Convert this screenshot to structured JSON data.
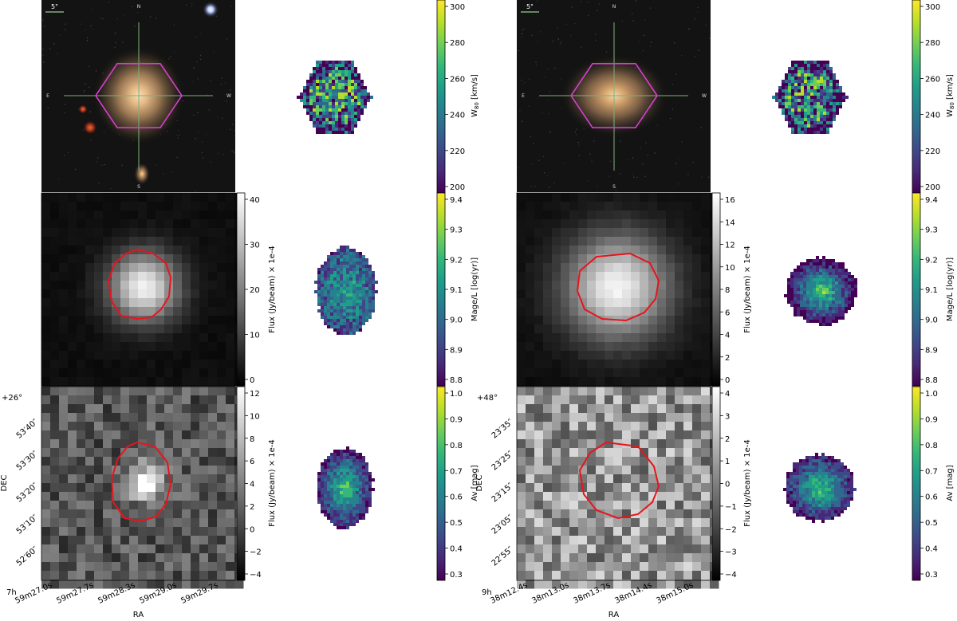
{
  "panels": [
    {
      "id": "left",
      "scale_bar_label": "5\"",
      "compass": {
        "n": "N",
        "s": "S",
        "e": "E",
        "w": "W"
      },
      "w80_colorbar": {
        "label": "W80 [km/s]",
        "label_main": "W",
        "label_sub": "80",
        "label_unit": " [km/s]",
        "ticks": [
          "300",
          "280",
          "260",
          "240",
          "220",
          "200"
        ]
      },
      "flux1_colorbar": {
        "label": "Flux (Jy/beam) × 1e-4",
        "ticks": [
          "40",
          "30",
          "20",
          "10",
          "0"
        ]
      },
      "age_colorbar": {
        "label": "Mage/L [log(yr)]",
        "ticks": [
          "9.4",
          "9.3",
          "9.2",
          "9.1",
          "9.0",
          "8.9",
          "8.8"
        ]
      },
      "flux2_colorbar": {
        "label": "Flux (Jy/beam) × 1e-4",
        "ticks": [
          "12",
          "10",
          "8",
          "6",
          "4",
          "2",
          "0",
          "−2",
          "−4"
        ]
      },
      "av_colorbar": {
        "label": "Av [mag]",
        "ticks": [
          "1.0",
          "0.9",
          "0.8",
          "0.7",
          "0.6",
          "0.5",
          "0.4",
          "0.3"
        ]
      },
      "dec_offset": "+26°",
      "dec_ticks": [
        "53′40″",
        "53′30″",
        "53′20″",
        "53′10″",
        "52′60″"
      ],
      "ra_offset": "7h",
      "ra_ticks": [
        "59m27.0s",
        "59m27.7s",
        "59m28.3s",
        "59m29.0s",
        "59m29.7s"
      ],
      "dec_label": "DEC",
      "ra_label": "RA"
    },
    {
      "id": "right",
      "scale_bar_label": "5\"",
      "compass": {
        "n": "N",
        "s": "S",
        "e": "E",
        "w": "W"
      },
      "w80_colorbar": {
        "label": "W80 [km/s]",
        "label_main": "W",
        "label_sub": "80",
        "label_unit": " [km/s]",
        "ticks": [
          "300",
          "280",
          "260",
          "240",
          "220",
          "200"
        ]
      },
      "flux1_colorbar": {
        "label": "Flux (Jy/beam) × 1e-4",
        "ticks": [
          "16",
          "14",
          "12",
          "10",
          "8",
          "6",
          "4",
          "2",
          "0"
        ]
      },
      "age_colorbar": {
        "label": "Mage/L [log(yr)]",
        "ticks": [
          "9.4",
          "9.3",
          "9.2",
          "9.1",
          "9.0",
          "8.9",
          "8.8"
        ]
      },
      "flux2_colorbar": {
        "label": "Flux (Jy/beam) × 1e-4",
        "ticks": [
          "4",
          "3",
          "2",
          "1",
          "0",
          "−1",
          "−2",
          "−3",
          "−4"
        ]
      },
      "av_colorbar": {
        "label": "Av [mag]",
        "ticks": [
          "1.0",
          "0.9",
          "0.8",
          "0.7",
          "0.6",
          "0.5",
          "0.4",
          "0.3"
        ]
      },
      "dec_offset": "+48°",
      "dec_ticks": [
        "23′35″",
        "23′25″",
        "23′15″",
        "23′05″",
        "22′55″"
      ],
      "ra_offset": "9h",
      "ra_ticks": [
        "38m12.4s",
        "38m13.0s",
        "38m13.7s",
        "38m14.4s",
        "38m15.0s"
      ],
      "dec_label": "DEC",
      "ra_label": "RA"
    }
  ],
  "colors": {
    "hexagon": "#d63fd0",
    "contour": "#e8141c",
    "crosshair": "#7fb07a",
    "viridis": [
      "#440154",
      "#482878",
      "#3e4989",
      "#31688e",
      "#26828e",
      "#1f9e89",
      "#35b779",
      "#6ece58",
      "#b5de2b",
      "#fde725"
    ]
  }
}
